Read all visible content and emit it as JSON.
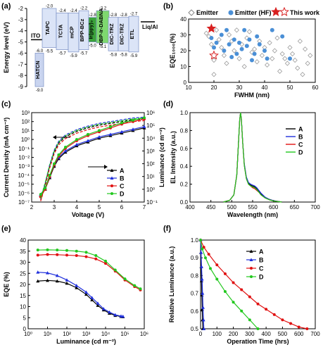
{
  "chart_data": [
    {
      "id": "a",
      "panel_label": "(a)",
      "type": "diagram",
      "ylabel": "Energy level (eV)",
      "yticks": [
        "-2",
        "-3",
        "-4",
        "-5",
        "-6",
        "-7",
        "-8",
        "-9"
      ],
      "ylim": [
        -9,
        -2
      ],
      "layers": [
        {
          "name": "ITO",
          "lumo": -4.8,
          "homo": -4.8
        },
        {
          "name": "HATCN",
          "lumo": -6.0,
          "homo": -9.0
        },
        {
          "name": "TAPC",
          "lumo": -2.0,
          "homo": -5.5
        },
        {
          "name": "TCTA",
          "lumo": -2.4,
          "homo": -5.7
        },
        {
          "name": "mCP",
          "lumo": -2.4,
          "homo": -5.9
        },
        {
          "name": "BPP-BCz",
          "lumo": -2.2,
          "homo": -5.7
        },
        {
          "name": "Ir(ppy)₃",
          "lumo": -2.8,
          "homo": -5.0
        },
        {
          "name": "DBP-Ir-DABNA",
          "lumo": -2.2,
          "homo": -5.1
        },
        {
          "name": "DIC-TRZ",
          "lumo": -2.8,
          "homo": -5.8
        },
        {
          "name": "DIC-TRZ",
          "lumo": -2.8,
          "homo": -5.8
        },
        {
          "name": "ETL",
          "lumo": -2.7,
          "homo": -5.9
        },
        {
          "name": "Liq/Al",
          "lumo": -3.2,
          "homo": -3.2
        }
      ]
    },
    {
      "id": "b",
      "panel_label": "(b)",
      "type": "scatter",
      "xlabel": "FWHM (nm)",
      "ylabel": "EQE₁₀₀₀(%)",
      "xlim": [
        10,
        60
      ],
      "ylim": [
        0,
        40
      ],
      "xticks": [
        10,
        20,
        30,
        40,
        50,
        60
      ],
      "yticks": [
        0,
        10,
        20,
        30,
        40
      ],
      "legend": [
        "Emitter",
        "Emitter (HF)",
        "This work"
      ],
      "series": [
        {
          "name": "Emitter",
          "points": [
            [
              17,
              31
            ],
            [
              18,
              29
            ],
            [
              19,
              24
            ],
            [
              20,
              14
            ],
            [
              20,
              5
            ],
            [
              21,
              33
            ],
            [
              22,
              27
            ],
            [
              23,
              22
            ],
            [
              24,
              17
            ],
            [
              25,
              12
            ],
            [
              26,
              30
            ],
            [
              27,
              26
            ],
            [
              28,
              20
            ],
            [
              29,
              33
            ],
            [
              30,
              15
            ],
            [
              31,
              24
            ],
            [
              32,
              10
            ],
            [
              33,
              28
            ],
            [
              34,
              32
            ],
            [
              35,
              19
            ],
            [
              36,
              21
            ],
            [
              37,
              13
            ],
            [
              38,
              26
            ],
            [
              39,
              17
            ],
            [
              40,
              22
            ],
            [
              41,
              11
            ],
            [
              42,
              25
            ],
            [
              43,
              15
            ],
            [
              44,
              20
            ],
            [
              45,
              28
            ],
            [
              46,
              7
            ],
            [
              47,
              18
            ],
            [
              48,
              15
            ],
            [
              49,
              12
            ],
            [
              50,
              22
            ],
            [
              51,
              18
            ],
            [
              52,
              14
            ],
            [
              53,
              9
            ],
            [
              54,
              26
            ],
            [
              55,
              5
            ],
            [
              56,
              21
            ],
            [
              57,
              12
            ],
            [
              58,
              17
            ]
          ]
        },
        {
          "name": "Emitter (HF)",
          "points": [
            [
              19,
              28
            ],
            [
              20,
              22
            ],
            [
              21,
              25
            ],
            [
              23,
              30
            ],
            [
              24,
              20
            ],
            [
              25,
              33
            ],
            [
              26,
              24
            ],
            [
              27,
              16
            ],
            [
              28,
              27
            ],
            [
              29,
              18
            ],
            [
              30,
              25
            ],
            [
              31,
              21
            ],
            [
              32,
              33
            ],
            [
              33,
              23
            ],
            [
              34,
              27
            ],
            [
              35,
              14
            ],
            [
              36,
              18
            ],
            [
              37,
              29
            ],
            [
              38,
              24
            ],
            [
              40,
              20
            ],
            [
              41,
              15
            ],
            [
              43,
              33
            ],
            [
              47,
              29
            ],
            [
              50,
              15
            ]
          ]
        },
        {
          "name": "This work",
          "points": [
            [
              19,
              34
            ],
            [
              20,
              17
            ]
          ]
        }
      ]
    },
    {
      "id": "c",
      "panel_label": "(c)",
      "type": "line",
      "xlabel": "Voltage (V)",
      "ylabel": "Current Density (mA cm⁻²)",
      "y2label": "Luminance (cd m⁻²)",
      "xlim": [
        2,
        7
      ],
      "ylim": [
        -7,
        3
      ],
      "y2lim": [
        -1,
        6
      ],
      "xticks": [
        2,
        3,
        4,
        5,
        6,
        7
      ],
      "series": [
        {
          "name": "A",
          "color": "#000000",
          "x": [
            2.4,
            2.6,
            2.8,
            3.0,
            3.2,
            3.5,
            4.0,
            4.5,
            5.0,
            5.5,
            6.0,
            6.5,
            7.0
          ],
          "j": [
            -6.8,
            -5.0,
            -3.0,
            -1.4,
            -0.4,
            0.3,
            0.9,
            1.3,
            1.6,
            1.8,
            2.0,
            2.2,
            2.3
          ],
          "l": [
            -0.5,
            0.0,
            0.9,
            1.8,
            2.4,
            2.9,
            3.4,
            3.7,
            4.0,
            4.2,
            4.4,
            4.6,
            4.8
          ]
        },
        {
          "name": "B",
          "color": "#1f2fdc",
          "x": [
            2.4,
            2.6,
            2.8,
            3.0,
            3.2,
            3.5,
            4.0,
            4.5,
            5.0,
            5.5,
            6.0,
            6.5,
            7.0
          ],
          "j": [
            -6.7,
            -4.9,
            -2.8,
            -1.2,
            -0.2,
            0.5,
            1.1,
            1.5,
            1.8,
            2.0,
            2.2,
            2.4,
            2.5
          ],
          "l": [
            -0.4,
            0.1,
            1.0,
            1.9,
            2.5,
            3.0,
            3.5,
            3.8,
            4.1,
            4.3,
            4.5,
            4.7,
            4.9
          ]
        },
        {
          "name": "C",
          "color": "#e01010",
          "x": [
            2.4,
            2.6,
            2.8,
            3.0,
            3.2,
            3.5,
            4.0,
            4.5,
            5.0,
            5.5,
            6.0,
            6.5,
            7.0
          ],
          "j": [
            -6.9,
            -5.2,
            -3.2,
            -1.6,
            -0.6,
            0.1,
            0.7,
            1.1,
            1.4,
            1.6,
            1.8,
            2.0,
            2.1
          ],
          "l": [
            -0.6,
            0.0,
            1.0,
            1.9,
            2.6,
            3.2,
            3.8,
            4.2,
            4.5,
            4.8,
            5.1,
            5.3,
            5.5
          ]
        },
        {
          "name": "D",
          "color": "#22c81e",
          "x": [
            2.4,
            2.6,
            2.8,
            3.0,
            3.2,
            3.5,
            4.0,
            4.5,
            5.0,
            5.5,
            6.0,
            6.5,
            7.0
          ],
          "j": [
            -6.6,
            -4.8,
            -2.9,
            -1.3,
            -0.3,
            0.4,
            1.0,
            1.4,
            1.7,
            1.9,
            2.1,
            2.3,
            2.4
          ],
          "l": [
            -0.4,
            0.1,
            1.1,
            2.0,
            2.7,
            3.3,
            3.9,
            4.3,
            4.6,
            4.9,
            5.2,
            5.4,
            5.6
          ]
        }
      ]
    },
    {
      "id": "d",
      "panel_label": "(d)",
      "type": "line",
      "xlabel": "Wavelength (nm)",
      "ylabel": "EL Intensity (a.u.)",
      "xlim": [
        400,
        700
      ],
      "ylim": [
        0,
        1.0
      ],
      "xticks": [
        400,
        450,
        500,
        550,
        600,
        650,
        700
      ],
      "yticks": [
        0.0,
        0.2,
        0.4,
        0.6,
        0.8,
        1.0
      ],
      "series": [
        {
          "name": "A",
          "color": "#000000",
          "x": [
            480,
            495,
            505,
            512,
            516,
            519,
            521,
            523,
            526,
            530,
            535,
            540,
            545,
            550,
            555,
            560,
            565,
            570,
            580,
            590,
            600,
            620
          ],
          "values": [
            0,
            0.02,
            0.08,
            0.3,
            0.65,
            0.92,
            1.0,
            0.93,
            0.68,
            0.42,
            0.27,
            0.21,
            0.19,
            0.18,
            0.17,
            0.15,
            0.12,
            0.09,
            0.05,
            0.03,
            0.015,
            0
          ]
        },
        {
          "name": "B",
          "color": "#1f2fdc",
          "x": [
            480,
            495,
            505,
            512,
            516,
            519,
            521,
            523,
            526,
            530,
            535,
            540,
            545,
            550,
            555,
            560,
            565,
            570,
            580,
            590,
            600,
            620
          ],
          "values": [
            0,
            0.02,
            0.08,
            0.3,
            0.65,
            0.92,
            1.0,
            0.93,
            0.68,
            0.43,
            0.28,
            0.22,
            0.2,
            0.19,
            0.18,
            0.16,
            0.13,
            0.1,
            0.055,
            0.03,
            0.015,
            0
          ]
        },
        {
          "name": "C",
          "color": "#e01010",
          "x": [
            480,
            495,
            505,
            512,
            516,
            519,
            521,
            523,
            526,
            530,
            535,
            540,
            545,
            550,
            555,
            560,
            565,
            570,
            580,
            590,
            600,
            620
          ],
          "values": [
            0,
            0.02,
            0.08,
            0.3,
            0.65,
            0.92,
            1.0,
            0.93,
            0.68,
            0.41,
            0.26,
            0.2,
            0.18,
            0.16,
            0.15,
            0.13,
            0.11,
            0.08,
            0.045,
            0.025,
            0.012,
            0
          ]
        },
        {
          "name": "D",
          "color": "#22c81e",
          "x": [
            480,
            495,
            505,
            512,
            516,
            519,
            521,
            523,
            526,
            530,
            535,
            540,
            545,
            550,
            555,
            560,
            565,
            570,
            580,
            590,
            600,
            620
          ],
          "values": [
            0,
            0.02,
            0.08,
            0.3,
            0.65,
            0.92,
            1.0,
            0.93,
            0.68,
            0.41,
            0.26,
            0.2,
            0.18,
            0.17,
            0.16,
            0.14,
            0.11,
            0.08,
            0.045,
            0.025,
            0.012,
            0
          ]
        }
      ]
    },
    {
      "id": "e",
      "panel_label": "(e)",
      "type": "line",
      "xlabel": "Luminance (cd m⁻²)",
      "ylabel": "EQE (%)",
      "xscale": "log",
      "xlim": [
        0,
        6
      ],
      "ylim": [
        0,
        40
      ],
      "yticks": [
        0,
        5,
        10,
        15,
        20,
        25,
        30,
        35,
        40
      ],
      "xticks": [
        0,
        1,
        2,
        3,
        4,
        5,
        6
      ],
      "series": [
        {
          "name": "A",
          "color": "#000000",
          "x": [
            0.5,
            1.0,
            1.5,
            2.0,
            2.5,
            3.0,
            3.3,
            3.6,
            3.9,
            4.2,
            4.5,
            4.8,
            4.9
          ],
          "values": [
            21.5,
            21.8,
            21.5,
            20.5,
            18.5,
            15.5,
            13.0,
            10.5,
            8.5,
            7.0,
            6.0,
            5.5,
            5.4
          ]
        },
        {
          "name": "B",
          "color": "#1f2fdc",
          "x": [
            0.5,
            1.0,
            1.5,
            2.0,
            2.5,
            3.0,
            3.3,
            3.6,
            3.9,
            4.2,
            4.5,
            4.8,
            4.9
          ],
          "values": [
            25.5,
            25.2,
            24.0,
            22.0,
            19.5,
            16.5,
            14.0,
            11.5,
            9.0,
            7.5,
            6.3,
            5.7,
            5.6
          ]
        },
        {
          "name": "C",
          "color": "#e01010",
          "x": [
            0.5,
            1.0,
            1.5,
            2.0,
            2.5,
            3.0,
            3.5,
            4.0,
            4.5,
            5.0,
            5.5,
            5.8
          ],
          "values": [
            33.2,
            33.5,
            33.4,
            33.2,
            33.0,
            32.5,
            31.5,
            29.5,
            26.0,
            22.0,
            19.0,
            17.5
          ]
        },
        {
          "name": "D",
          "color": "#22c81e",
          "x": [
            0.5,
            1.0,
            1.5,
            2.0,
            2.5,
            3.0,
            3.5,
            4.0,
            4.5,
            5.0,
            5.5,
            5.8
          ],
          "values": [
            35.5,
            35.6,
            35.5,
            35.3,
            35.0,
            34.5,
            33.0,
            30.5,
            26.5,
            22.5,
            19.5,
            18.0
          ]
        }
      ]
    },
    {
      "id": "f",
      "panel_label": "(f)",
      "type": "line",
      "xlabel": "Operation Time (hrs)",
      "ylabel": "Relative Luminance (a.u.)",
      "xlim": [
        0,
        700
      ],
      "ylim": [
        0.5,
        1.0
      ],
      "xticks": [
        0,
        100,
        200,
        300,
        400,
        500,
        600,
        700
      ],
      "yticks": [
        0.5,
        0.6,
        0.7,
        0.8,
        0.9,
        1.0
      ],
      "series": [
        {
          "name": "A",
          "color": "#000000",
          "x": [
            0,
            2,
            4,
            6,
            8,
            10,
            12,
            14
          ],
          "values": [
            1.0,
            0.93,
            0.85,
            0.77,
            0.69,
            0.61,
            0.55,
            0.5
          ]
        },
        {
          "name": "B",
          "color": "#1f2fdc",
          "x": [
            0,
            3,
            6,
            9,
            12,
            15,
            18,
            20
          ],
          "values": [
            1.0,
            0.93,
            0.85,
            0.78,
            0.7,
            0.62,
            0.55,
            0.5
          ]
        },
        {
          "name": "C",
          "color": "#e01010",
          "x": [
            0,
            20,
            50,
            100,
            150,
            200,
            250,
            300,
            350,
            400,
            450,
            500,
            550,
            600,
            650
          ],
          "values": [
            1.0,
            0.96,
            0.92,
            0.86,
            0.81,
            0.76,
            0.72,
            0.68,
            0.64,
            0.61,
            0.58,
            0.55,
            0.53,
            0.51,
            0.5
          ]
        },
        {
          "name": "D",
          "color": "#22c81e",
          "x": [
            0,
            10,
            30,
            60,
            100,
            150,
            200,
            250,
            300,
            350
          ],
          "values": [
            1.0,
            0.95,
            0.9,
            0.84,
            0.78,
            0.71,
            0.65,
            0.6,
            0.55,
            0.5
          ]
        }
      ]
    }
  ]
}
